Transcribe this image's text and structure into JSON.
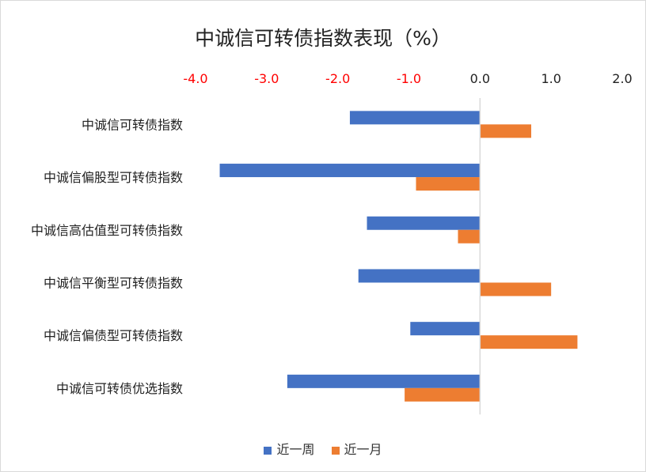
{
  "chart_data": {
    "type": "bar",
    "orientation": "horizontal",
    "title": "中诚信可转债指数表现（%）",
    "categories": [
      "中诚信可转债指数",
      "中诚信偏股型可转债指数",
      "中诚信高估值型可转债指数",
      "中诚信平衡型可转债指数",
      "中诚信偏债型可转债指数",
      "中诚信可转债优选指数"
    ],
    "series": [
      {
        "name": "近一周",
        "color": "#4472C4",
        "values": [
          -1.83,
          -3.66,
          -1.59,
          -1.71,
          -0.98,
          -2.71
        ]
      },
      {
        "name": "近一月",
        "color": "#ED7D31",
        "values": [
          0.72,
          -0.9,
          -0.31,
          1.0,
          1.37,
          -1.06
        ]
      }
    ],
    "xlim": [
      -4.0,
      2.0
    ],
    "ticks": [
      "-4.0",
      "-3.0",
      "-2.0",
      "-1.0",
      "0.0",
      "1.0",
      "2.0"
    ],
    "tick_values": [
      -4,
      -3,
      -2,
      -1,
      0,
      1,
      2
    ],
    "negative_tick_color": "#FF0000",
    "axis_position": "top",
    "grid": false,
    "legend": "bottom"
  }
}
